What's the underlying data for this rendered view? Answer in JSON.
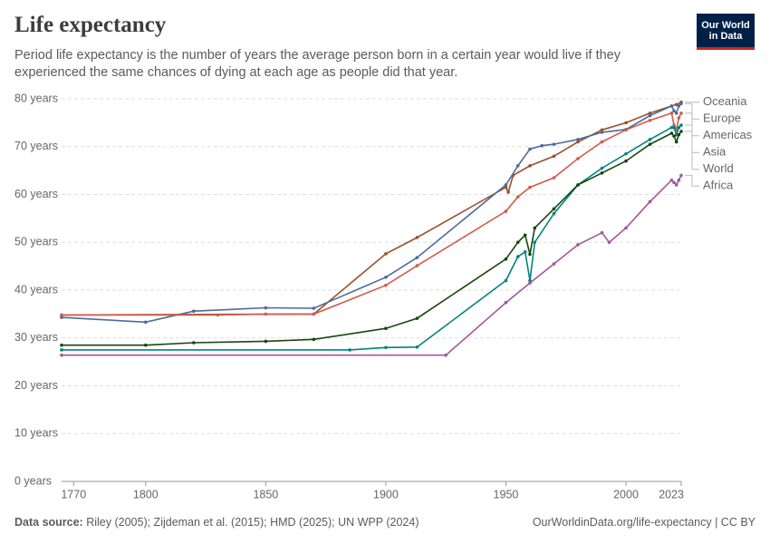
{
  "logo": "Our World in Data",
  "chart_data": {
    "type": "line",
    "title": "Life expectancy",
    "subtitle": "Period life expectancy is the number of years the average person born in a certain year would live if they experienced the same chances of dying at each age as people did that year.",
    "source_label": "Data source:",
    "source": "Riley (2005); Zijdeman et al. (2015); HMD (2025); UN WPP (2024)",
    "url": "OurWorldinData.org/life-expectancy | CC BY",
    "xlim": [
      1765,
      2023
    ],
    "xticks": [
      1770,
      1800,
      1850,
      1900,
      1950,
      2000,
      2023
    ],
    "ylim": [
      0,
      80
    ],
    "yticks": [
      {
        "value": 0,
        "label": "0 years"
      },
      {
        "value": 10,
        "label": "10 years"
      },
      {
        "value": 20,
        "label": "20 years"
      },
      {
        "value": 30,
        "label": "30 years"
      },
      {
        "value": 40,
        "label": "40 years"
      },
      {
        "value": 50,
        "label": "50 years"
      },
      {
        "value": 60,
        "label": "60 years"
      },
      {
        "value": 70,
        "label": "70 years"
      },
      {
        "value": 80,
        "label": "80 years"
      }
    ],
    "grid": true,
    "series": [
      {
        "name": "Oceania",
        "color": "#9a5129",
        "x": [
          1765,
          1870,
          1900,
          1913,
          1950,
          1951,
          1953,
          1960,
          1970,
          1980,
          1990,
          2000,
          2010,
          2019,
          2021,
          2023
        ],
        "values": [
          34.8,
          35.0,
          47.6,
          51.0,
          61.5,
          60.5,
          64,
          66,
          68,
          71,
          73.5,
          75,
          77,
          78.5,
          78.8,
          79.3
        ]
      },
      {
        "name": "Europe",
        "color": "#4c6a9c",
        "x": [
          1765,
          1800,
          1820,
          1850,
          1870,
          1900,
          1913,
          1950,
          1955,
          1960,
          1965,
          1970,
          1980,
          1990,
          2000,
          2010,
          2019,
          2020,
          2021,
          2022,
          2023
        ],
        "values": [
          34.3,
          33.3,
          35.6,
          36.3,
          36.2,
          42.7,
          46.8,
          62,
          66,
          69.5,
          70.2,
          70.5,
          71.5,
          73,
          73.6,
          76.5,
          78.5,
          77.5,
          77,
          78.5,
          79
        ]
      },
      {
        "name": "Americas",
        "color": "#d15b4b",
        "x": [
          1765,
          1830,
          1850,
          1870,
          1900,
          1913,
          1950,
          1955,
          1960,
          1970,
          1980,
          1990,
          2000,
          2010,
          2019,
          2020,
          2021,
          2022,
          2023
        ],
        "values": [
          34.8,
          34.8,
          35.0,
          35.0,
          41.0,
          45.1,
          56.5,
          59.5,
          61.5,
          63.5,
          67.5,
          71,
          73.5,
          75.5,
          77,
          74.5,
          73.5,
          76,
          77
        ]
      },
      {
        "name": "Asia",
        "color": "#00847e",
        "x": [
          1765,
          1885,
          1900,
          1913,
          1950,
          1955,
          1958,
          1960,
          1962,
          1970,
          1980,
          1990,
          2000,
          2010,
          2019,
          2020,
          2021,
          2022,
          2023
        ],
        "values": [
          27.5,
          27.5,
          28.0,
          28.1,
          42,
          47,
          48,
          42,
          50,
          56,
          62,
          65.5,
          68.5,
          71.5,
          74,
          74,
          72.5,
          74,
          74.5
        ]
      },
      {
        "name": "World",
        "color": "#18470f",
        "x": [
          1765,
          1800,
          1820,
          1850,
          1870,
          1900,
          1913,
          1950,
          1955,
          1958,
          1960,
          1962,
          1970,
          1980,
          1990,
          2000,
          2010,
          2019,
          2020,
          2021,
          2022,
          2023
        ],
        "values": [
          28.5,
          28.5,
          29.0,
          29.3,
          29.7,
          32.0,
          34.1,
          46.5,
          50,
          51.5,
          47.5,
          53,
          57,
          62,
          64.5,
          67,
          70.5,
          72.8,
          72.2,
          71,
          72.5,
          73.2
        ]
      },
      {
        "name": "Africa",
        "color": "#a2559c",
        "x": [
          1765,
          1925,
          1950,
          1960,
          1970,
          1980,
          1990,
          1993,
          2000,
          2010,
          2019,
          2020,
          2021,
          2022,
          2023
        ],
        "values": [
          26.4,
          26.4,
          37.4,
          41.5,
          45.5,
          49.5,
          52,
          50,
          53,
          58.5,
          63,
          62.5,
          62,
          63,
          64
        ]
      }
    ]
  }
}
